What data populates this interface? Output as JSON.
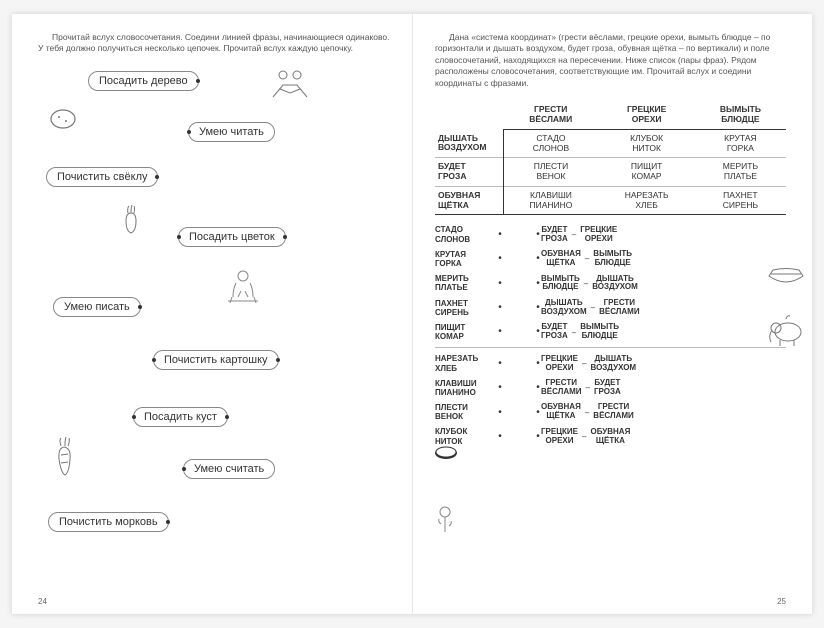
{
  "left": {
    "instruction": "Прочитай вслух словосочетания. Соедини линией фразы, начинающиеся одинаково. У тебя должно получиться несколько цепочек. Прочитай вслух каждую цепочку.",
    "phrases": {
      "p1": "Посадить дерево",
      "p2": "Умею читать",
      "p3": "Почистить свёклу",
      "p4": "Посадить цветок",
      "p5": "Умею писать",
      "p6": "Почистить картошку",
      "p7": "Посадить куст",
      "p8": "Умею считать",
      "p9": "Почистить морковь"
    },
    "pageNum": "24"
  },
  "right": {
    "instruction": "Дана «система координат» (грести вёслами, грецкие орехи, вымыть блюдце – по горизонтали и дышать воздухом, будет гроза, обувная щётка – по вертикали) и поле словосочетаний, находящихся на пересечении. Ниже список (пары фраз). Рядом расположены словосочетания, соответствующие им. Прочитай вслух и соедини координаты с фразами.",
    "cols": {
      "c1a": "ГРЕСТИ",
      "c1b": "ВЁСЛАМИ",
      "c2a": "ГРЕЦКИЕ",
      "c2b": "ОРЕХИ",
      "c3a": "ВЫМЫТЬ",
      "c3b": "БЛЮДЦЕ"
    },
    "rows": {
      "r1a": "ДЫШАТЬ",
      "r1b": "ВОЗДУХОМ",
      "r2a": "БУДЕТ",
      "r2b": "ГРОЗА",
      "r3a": "ОБУВНАЯ",
      "r3b": "ЩЁТКА"
    },
    "cells": {
      "c11a": "СТАДО",
      "c11b": "СЛОНОВ",
      "c12a": "КЛУБОК",
      "c12b": "НИТОК",
      "c13a": "КРУТАЯ",
      "c13b": "ГОРКА",
      "c21a": "ПЛЕСТИ",
      "c21b": "ВЕНОК",
      "c22a": "ПИЩИТ",
      "c22b": "КОМАР",
      "c23a": "МЕРИТЬ",
      "c23b": "ПЛАТЬЕ",
      "c31a": "КЛАВИШИ",
      "c31b": "ПИАНИНО",
      "c32a": "НАРЕЗАТЬ",
      "c32b": "ХЛЕБ",
      "c33a": "ПАХНЕТ",
      "c33b": "СИРЕНЬ"
    },
    "pairs": [
      {
        "l1": "СТАДО",
        "l2": "СЛОНОВ",
        "r1a": "БУДЕТ",
        "r1b": "ГРОЗА",
        "r2a": "ГРЕЦКИЕ",
        "r2b": "ОРЕХИ"
      },
      {
        "l1": "КРУТАЯ",
        "l2": "ГОРКА",
        "r1a": "ОБУВНАЯ",
        "r1b": "ЩЁТКА",
        "r2a": "ВЫМЫТЬ",
        "r2b": "БЛЮДЦЕ"
      },
      {
        "l1": "МЕРИТЬ",
        "l2": "ПЛАТЬЕ",
        "r1a": "ВЫМЫТЬ",
        "r1b": "БЛЮДЦЕ",
        "r2a": "ДЫШАТЬ",
        "r2b": "ВОЗДУХОМ"
      },
      {
        "l1": "ПАХНЕТ",
        "l2": "СИРЕНЬ",
        "r1a": "ДЫШАТЬ",
        "r1b": "ВОЗДУХОМ",
        "r2a": "ГРЕСТИ",
        "r2b": "ВЁСЛАМИ"
      },
      {
        "l1": "ПИЩИТ",
        "l2": "КОМАР",
        "r1a": "БУДЕТ",
        "r1b": "ГРОЗА",
        "r2a": "ВЫМЫТЬ",
        "r2b": "БЛЮДЦЕ"
      },
      {
        "l1": "НАРЕЗАТЬ",
        "l2": "ХЛЕБ",
        "r1a": "ГРЕЦКИЕ",
        "r1b": "ОРЕХИ",
        "r2a": "ДЫШАТЬ",
        "r2b": "ВОЗДУХОМ"
      },
      {
        "l1": "КЛАВИШИ",
        "l2": "ПИАНИНО",
        "r1a": "ГРЕСТИ",
        "r1b": "ВЁСЛАМИ",
        "r2a": "БУДЕТ",
        "r2b": "ГРОЗА"
      },
      {
        "l1": "ПЛЕСТИ",
        "l2": "ВЕНОК",
        "r1a": "ОБУВНАЯ",
        "r1b": "ЩЁТКА",
        "r2a": "ГРЕСТИ",
        "r2b": "ВЁСЛАМИ"
      },
      {
        "l1": "КЛУБОК",
        "l2": "НИТОК",
        "r1a": "ГРЕЦКИЕ",
        "r1b": "ОРЕХИ",
        "r2a": "ОБУВНАЯ",
        "r2b": "ЩЁТКА"
      }
    ],
    "pageNum": "25"
  }
}
